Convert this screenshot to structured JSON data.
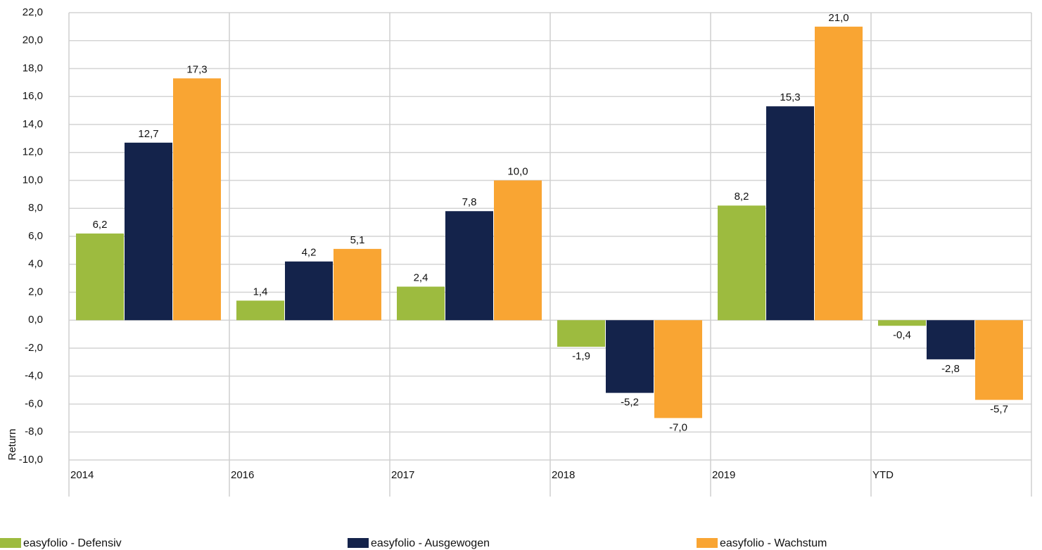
{
  "chart_data": {
    "type": "bar",
    "y_axis_label": "Return",
    "categories": [
      "2014",
      "2016",
      "2017",
      "2018",
      "2019",
      "YTD"
    ],
    "series": [
      {
        "name": "easyfolio - Defensiv",
        "color": "#9dbb3f",
        "values": [
          6.2,
          1.4,
          2.4,
          -1.9,
          8.2,
          -0.4
        ],
        "value_labels": [
          "6,2",
          "1,4",
          "2,4",
          "-1,9",
          "8,2",
          "-0,4"
        ]
      },
      {
        "name": "easyfolio - Ausgewogen",
        "color": "#14234b",
        "values": [
          12.7,
          4.2,
          7.8,
          -5.2,
          15.3,
          -2.8
        ],
        "value_labels": [
          "12,7",
          "4,2",
          "7,8",
          "-5,2",
          "15,3",
          "-2,8"
        ]
      },
      {
        "name": "easyfolio - Wachstum",
        "color": "#f9a533",
        "values": [
          17.3,
          5.1,
          10.0,
          -7.0,
          21.0,
          -5.7
        ],
        "value_labels": [
          "17,3",
          "5,1",
          "10,0",
          "-7,0",
          "21,0",
          "-5,7"
        ]
      }
    ],
    "ylim": [
      -10,
      22
    ],
    "yticks": [
      {
        "value": -10,
        "label": "-10,0"
      },
      {
        "value": -8,
        "label": "-8,0"
      },
      {
        "value": -6,
        "label": "-6,0"
      },
      {
        "value": -4,
        "label": "-4,0"
      },
      {
        "value": -2,
        "label": "-2,0"
      },
      {
        "value": 0,
        "label": "0,0"
      },
      {
        "value": 2,
        "label": "2,0"
      },
      {
        "value": 4,
        "label": "4,0"
      },
      {
        "value": 6,
        "label": "6,0"
      },
      {
        "value": 8,
        "label": "8,0"
      },
      {
        "value": 10,
        "label": "10,0"
      },
      {
        "value": 12,
        "label": "12,0"
      },
      {
        "value": 14,
        "label": "14,0"
      },
      {
        "value": 16,
        "label": "16,0"
      },
      {
        "value": 18,
        "label": "18,0"
      },
      {
        "value": 20,
        "label": "20,0"
      },
      {
        "value": 22,
        "label": "22,0"
      }
    ],
    "grid": true,
    "legend": "bottom"
  }
}
